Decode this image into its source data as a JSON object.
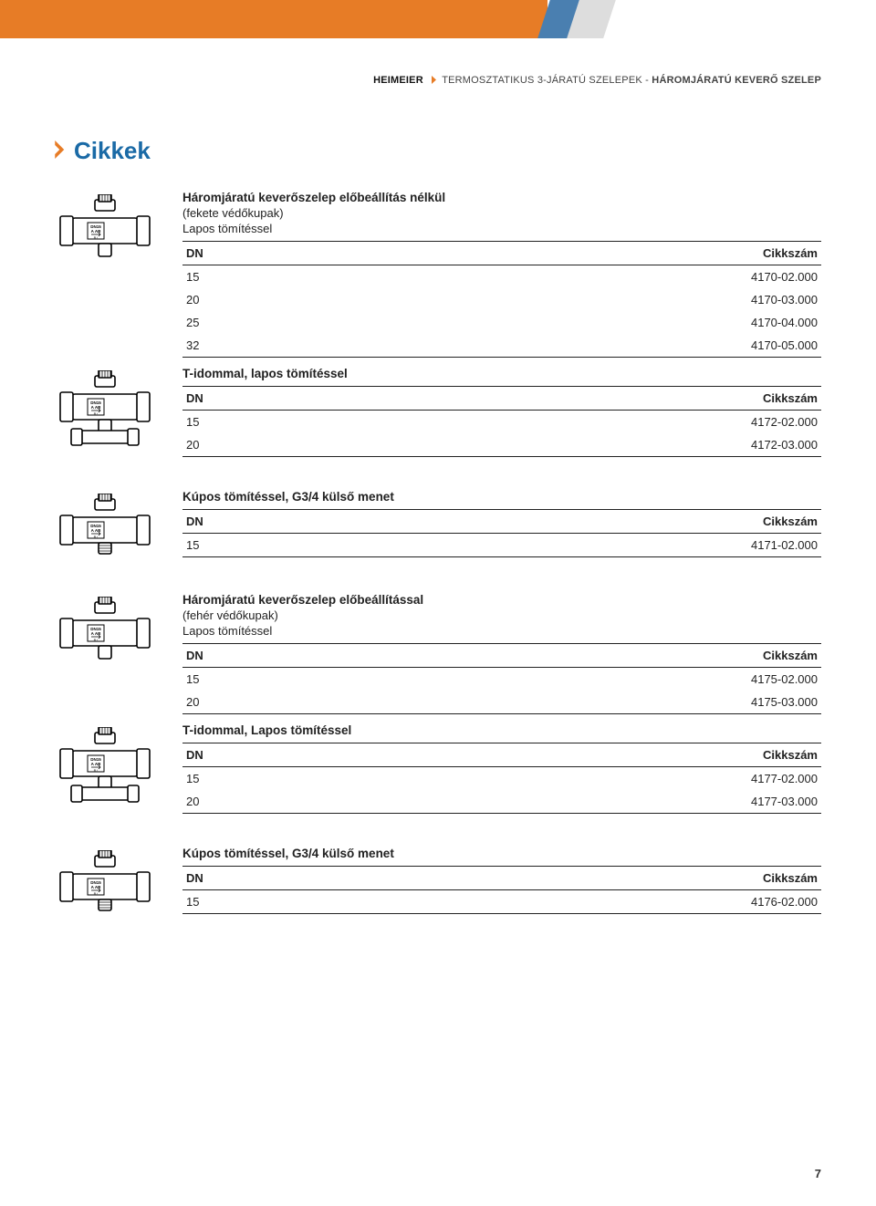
{
  "header": {
    "banner_colors": {
      "orange": "#e77c26",
      "blue": "#4a7fb0",
      "gray": "#dddddd"
    },
    "brand": "HEIMEIER",
    "path1": "TERMOSZTATIKUS 3-JÁRATÚ SZELEPEK",
    "path_sep": " - ",
    "path2": "HÁROMJÁRATÚ KEVERŐ SZELEP"
  },
  "section_title": "Cikkek",
  "col_dn": "DN",
  "col_code": "Cikkszám",
  "groups": [
    {
      "title": "Háromjáratú keverőszelep előbeállítás nélkül",
      "sub1": "(fekete védőkupak)",
      "sub2": "Lapos tömítéssel",
      "icon": "valve-3way",
      "rows": [
        {
          "dn": "15",
          "code": "4170-02.000"
        },
        {
          "dn": "20",
          "code": "4170-03.000"
        },
        {
          "dn": "25",
          "code": "4170-04.000"
        },
        {
          "dn": "32",
          "code": "4170-05.000"
        }
      ],
      "sub_block": {
        "title": "T-idommal, lapos tömítéssel",
        "icon": "valve-tee",
        "rows": [
          {
            "dn": "15",
            "code": "4172-02.000"
          },
          {
            "dn": "20",
            "code": "4172-03.000"
          }
        ]
      }
    },
    {
      "title": "Kúpos tömítéssel, G3/4 külső menet",
      "icon": "valve-cone",
      "rows": [
        {
          "dn": "15",
          "code": "4171-02.000"
        }
      ]
    },
    {
      "title": "Háromjáratú keverőszelep előbeállítással",
      "sub1": "(fehér védőkupak)",
      "sub2": "Lapos tömítéssel",
      "icon": "valve-3way",
      "rows": [
        {
          "dn": "15",
          "code": "4175-02.000"
        },
        {
          "dn": "20",
          "code": "4175-03.000"
        }
      ],
      "sub_block": {
        "title": "T-idommal, Lapos tömítéssel",
        "icon": "valve-tee",
        "rows": [
          {
            "dn": "15",
            "code": "4177-02.000"
          },
          {
            "dn": "20",
            "code": "4177-03.000"
          }
        ]
      }
    },
    {
      "title": "Kúpos tömítéssel, G3/4 külső menet",
      "icon": "valve-cone",
      "rows": [
        {
          "dn": "15",
          "code": "4176-02.000"
        }
      ]
    }
  ],
  "page_number": "7"
}
